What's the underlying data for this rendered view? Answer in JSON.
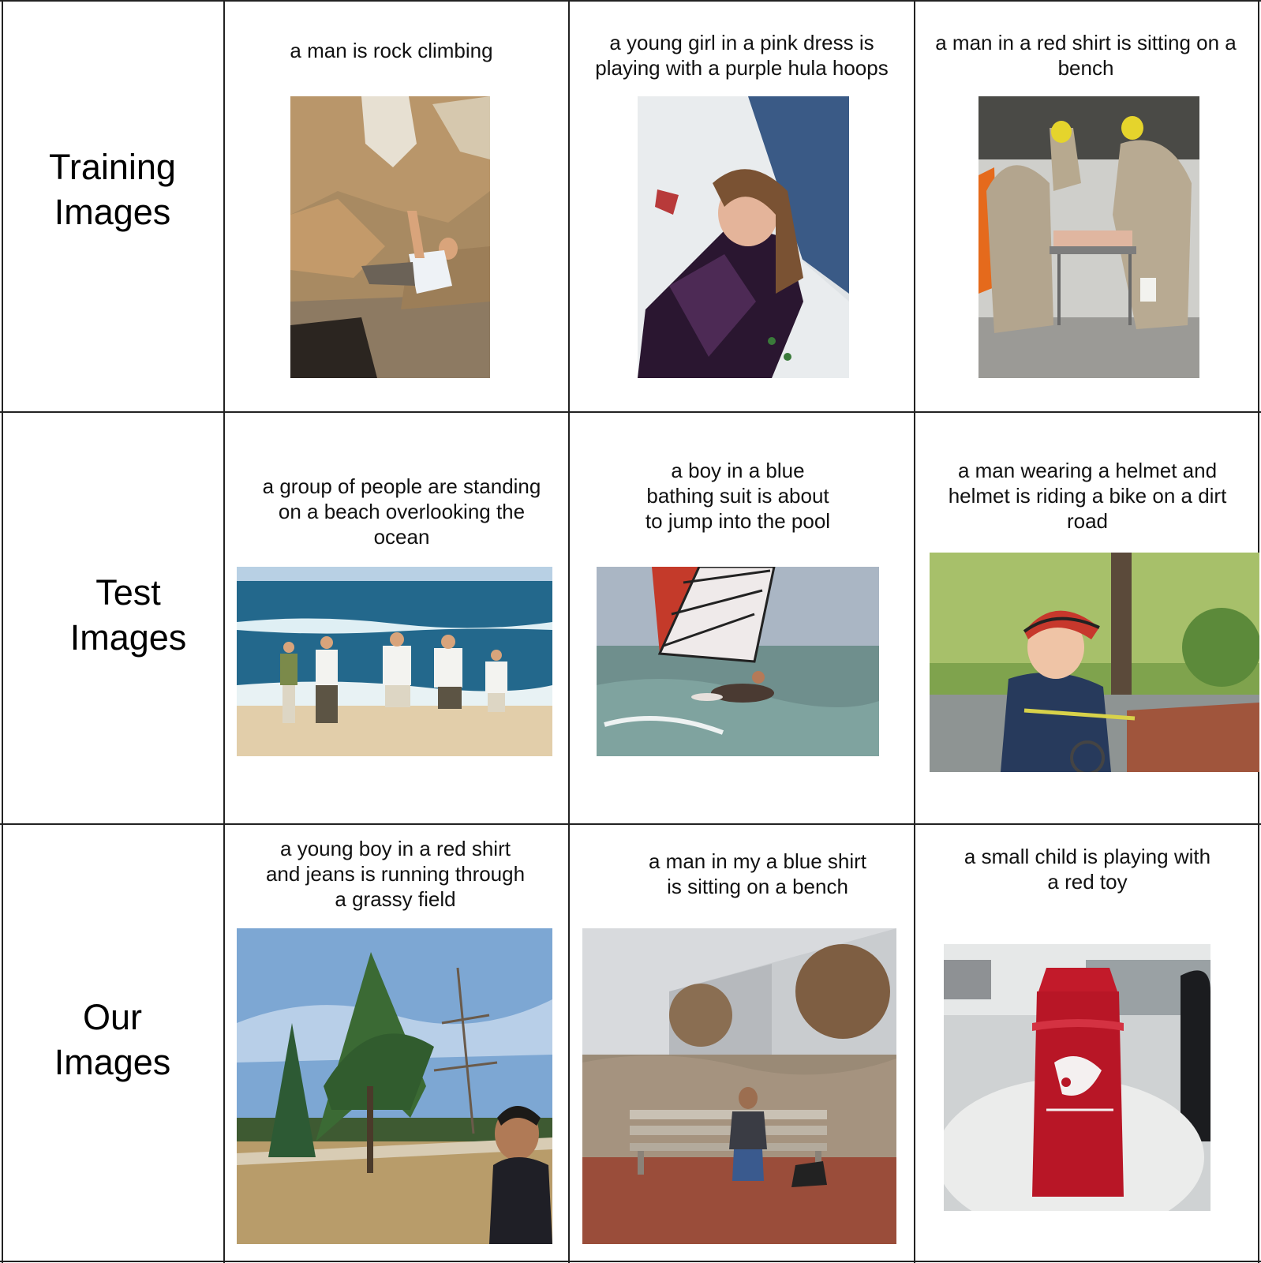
{
  "rows": [
    {
      "label_line1": "Training",
      "label_line2": "Images"
    },
    {
      "label_line1": "Test",
      "label_line2": "Images"
    },
    {
      "label_line1": "Our",
      "label_line2": "Images"
    }
  ],
  "cells": [
    {
      "caption": "a man is rock climbing",
      "photo": "rock-climber-photo"
    },
    {
      "caption": "a young girl in a pink dress is\nplaying with a purple hula hoops",
      "photo": "girl-purple-dress-photo"
    },
    {
      "caption": "a man in a red shirt is sitting on a\nbench",
      "photo": "hazmat-suits-photo"
    },
    {
      "caption": "a group of people are standing\non a beach overlooking the\nocean",
      "photo": "beach-group-photo"
    },
    {
      "caption": "a boy in a blue\nbathing suit is about\nto jump into the pool",
      "photo": "windsurfer-photo"
    },
    {
      "caption": "a man wearing a helmet and\nhelmet is riding a bike on a dirt\nroad",
      "photo": "boy-bike-helmet-photo"
    },
    {
      "caption": "a young boy in a red shirt\nand jeans is running through\na grassy field",
      "photo": "pine-tree-park-photo"
    },
    {
      "caption": "a man in my a blue shirt\nis sitting on a bench",
      "photo": "man-on-bench-photo"
    },
    {
      "caption": "a small child is playing with\na red toy",
      "photo": "red-water-bottle-photo"
    }
  ]
}
